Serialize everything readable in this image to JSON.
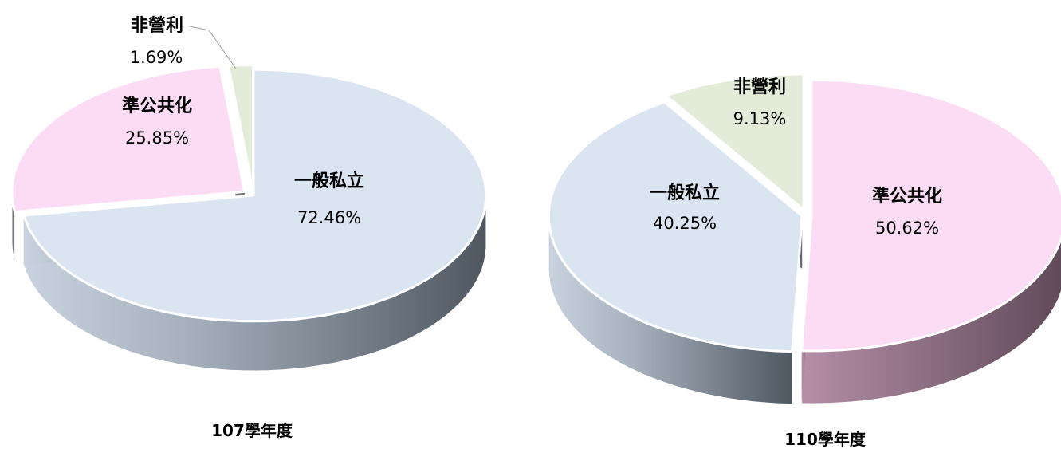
{
  "chart_data": [
    {
      "type": "pie",
      "title": "107學年度",
      "slices": [
        {
          "label": "一般私立",
          "value": 72.46,
          "display": "72.46%",
          "color": "#dbe5f1"
        },
        {
          "label": "準公共化",
          "value": 25.85,
          "display": "25.85%",
          "color": "#fcdcf5"
        },
        {
          "label": "非營利",
          "value": 1.69,
          "display": "1.69%",
          "color": "#e3ecd8"
        }
      ]
    },
    {
      "type": "pie",
      "title": "110學年度",
      "slices": [
        {
          "label": "準公共化",
          "value": 50.62,
          "display": "50.62%",
          "color": "#fcdcf5"
        },
        {
          "label": "一般私立",
          "value": 40.25,
          "display": "40.25%",
          "color": "#dbe5f1"
        },
        {
          "label": "非營利",
          "value": 9.13,
          "display": "9.13%",
          "color": "#e3ecd8"
        }
      ]
    }
  ]
}
